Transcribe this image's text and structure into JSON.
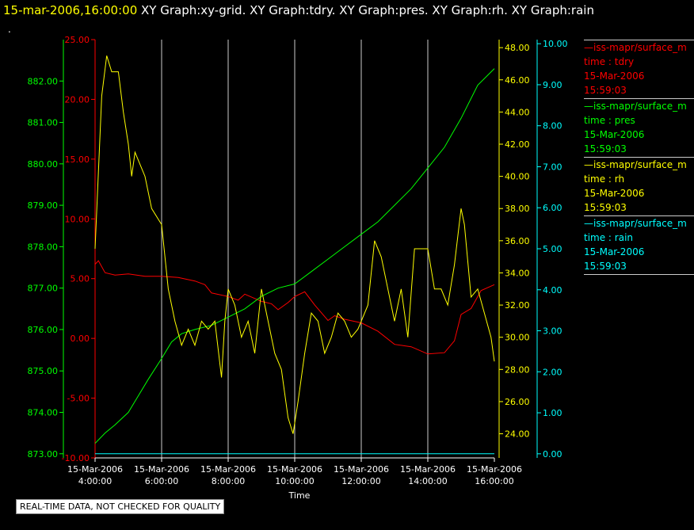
{
  "header": {
    "timestamp": "15-mar-2006,16:00:00",
    "graphs": "XY Graph:xy-grid.  XY Graph:tdry.  XY Graph:pres.  XY Graph:rh.  XY Graph:rain",
    "dot": "."
  },
  "notice": "REAL-TIME DATA, NOT CHECKED FOR QUALITY",
  "colors": {
    "tdry": "#ff0000",
    "pres": "#00ff00",
    "rh": "#ffff00",
    "rain": "#00ffff",
    "grid": "#cccccc"
  },
  "legend": [
    {
      "source": "—iss-mapr/surface_m",
      "var": "time : tdry",
      "date": "15-Mar-2006",
      "time": "15:59:03",
      "color": "#ff0000"
    },
    {
      "source": "—iss-mapr/surface_m",
      "var": "time : pres",
      "date": "15-Mar-2006",
      "time": "15:59:03",
      "color": "#00ff00"
    },
    {
      "source": "—iss-mapr/surface_m",
      "var": "time : rh",
      "date": "15-Mar-2006",
      "time": "15:59:03",
      "color": "#ffff00"
    },
    {
      "source": "—iss-mapr/surface_m",
      "var": "time : rain",
      "date": "15-Mar-2006",
      "time": "15:59:03",
      "color": "#00ffff"
    }
  ],
  "chart_data": {
    "type": "line",
    "xlabel": "Time",
    "xlim": [
      4,
      16
    ],
    "x_ticks": [
      {
        "x": 4,
        "date": "15-Mar-2006",
        "time": "4:00:00"
      },
      {
        "x": 6,
        "date": "15-Mar-2006",
        "time": "6:00:00"
      },
      {
        "x": 8,
        "date": "15-Mar-2006",
        "time": "8:00:00"
      },
      {
        "x": 10,
        "date": "15-Mar-2006",
        "time": "10:00:00"
      },
      {
        "x": 12,
        "date": "15-Mar-2006",
        "time": "12:00:00"
      },
      {
        "x": 14,
        "date": "15-Mar-2006",
        "time": "14:00:00"
      },
      {
        "x": 16,
        "date": "15-Mar-2006",
        "time": "16:00:00"
      }
    ],
    "grid": true,
    "axes": {
      "tdry": {
        "range": [
          -10,
          25
        ],
        "ticks": [
          "-10.00",
          "-5.00",
          "0.00",
          "5.00",
          "10.00",
          "15.00",
          "20.00",
          "25.00"
        ]
      },
      "pres": {
        "range": [
          872.9,
          883.0
        ],
        "ticks": [
          "873.00",
          "874.00",
          "875.00",
          "876.00",
          "877.00",
          "878.00",
          "879.00",
          "880.00",
          "881.00",
          "882.00"
        ]
      },
      "rh": {
        "range": [
          22.5,
          48.5
        ],
        "ticks": [
          "24.00",
          "26.00",
          "28.00",
          "30.00",
          "32.00",
          "34.00",
          "36.00",
          "38.00",
          "40.00",
          "42.00",
          "44.00",
          "46.00",
          "48.00"
        ]
      },
      "rain": {
        "range": [
          -0.1,
          10.1
        ],
        "ticks": [
          "0.00",
          "1.00",
          "2.00",
          "3.00",
          "4.00",
          "5.00",
          "6.00",
          "7.00",
          "8.00",
          "9.00",
          "10.00"
        ]
      }
    },
    "series": [
      {
        "key": "tdry",
        "x": [
          4,
          4.1,
          4.3,
          4.6,
          5,
          5.5,
          6,
          6.5,
          7,
          7.3,
          7.5,
          8,
          8.3,
          8.5,
          9,
          9.3,
          9.5,
          9.8,
          10,
          10.3,
          10.6,
          11,
          11.2,
          11.5,
          12,
          12.5,
          13,
          13.5,
          14,
          14.5,
          14.8,
          15,
          15.3,
          15.6,
          16
        ],
        "values": [
          6.2,
          6.5,
          5.5,
          5.3,
          5.4,
          5.2,
          5.2,
          5.1,
          4.8,
          4.5,
          3.8,
          3.5,
          3.2,
          3.7,
          3.1,
          2.9,
          2.4,
          3.0,
          3.5,
          3.9,
          2.8,
          1.5,
          1.9,
          1.6,
          1.3,
          0.6,
          -0.5,
          -0.7,
          -1.3,
          -1.2,
          -0.2,
          2.0,
          2.5,
          4.0,
          4.5
        ]
      },
      {
        "key": "pres",
        "x": [
          4,
          4.3,
          4.6,
          5,
          5.3,
          5.6,
          6,
          6.3,
          6.6,
          7,
          7.5,
          8,
          8.5,
          9,
          9.5,
          10,
          10.5,
          11,
          11.5,
          12,
          12.5,
          13,
          13.5,
          14,
          14.5,
          15,
          15.5,
          16
        ],
        "values": [
          873.25,
          873.5,
          873.7,
          874.0,
          874.4,
          874.8,
          875.3,
          875.7,
          875.9,
          876.0,
          876.1,
          876.3,
          876.5,
          876.8,
          877.0,
          877.1,
          877.4,
          877.7,
          878.0,
          878.3,
          878.6,
          879.0,
          879.4,
          879.9,
          880.4,
          881.1,
          881.9,
          882.3
        ]
      },
      {
        "key": "rh",
        "x": [
          4,
          4.2,
          4.35,
          4.5,
          4.7,
          4.85,
          5,
          5.1,
          5.2,
          5.3,
          5.5,
          5.7,
          6,
          6.2,
          6.4,
          6.6,
          6.8,
          7,
          7.2,
          7.4,
          7.6,
          7.8,
          7.9,
          8,
          8.2,
          8.4,
          8.6,
          8.8,
          9,
          9.2,
          9.4,
          9.6,
          9.8,
          9.95,
          10.1,
          10.3,
          10.5,
          10.7,
          10.9,
          11.1,
          11.3,
          11.5,
          11.7,
          11.9,
          12,
          12.2,
          12.4,
          12.5,
          12.6,
          12.8,
          13,
          13.2,
          13.4,
          13.6,
          13.8,
          14,
          14.2,
          14.4,
          14.6,
          14.8,
          15,
          15.1,
          15.3,
          15.5,
          15.7,
          15.9,
          16
        ],
        "values": [
          35.5,
          45,
          47.5,
          46.5,
          46.5,
          44,
          42,
          40,
          41.5,
          41,
          40,
          38,
          37,
          33,
          31,
          29.5,
          30.5,
          29.5,
          31,
          30.5,
          31,
          27.5,
          31,
          33,
          32,
          30,
          31,
          29,
          33,
          31,
          29,
          28,
          25,
          24,
          26,
          29,
          31.5,
          31,
          29,
          30,
          31.5,
          31,
          30,
          30.5,
          31,
          32,
          36,
          35.5,
          35,
          33,
          31,
          33,
          30,
          35.5,
          35.5,
          35.5,
          33,
          33,
          32,
          34.5,
          38,
          37,
          32.5,
          33,
          31.5,
          30,
          28.5
        ]
      },
      {
        "key": "rain",
        "x": [
          4,
          16
        ],
        "values": [
          0,
          0
        ]
      }
    ]
  }
}
